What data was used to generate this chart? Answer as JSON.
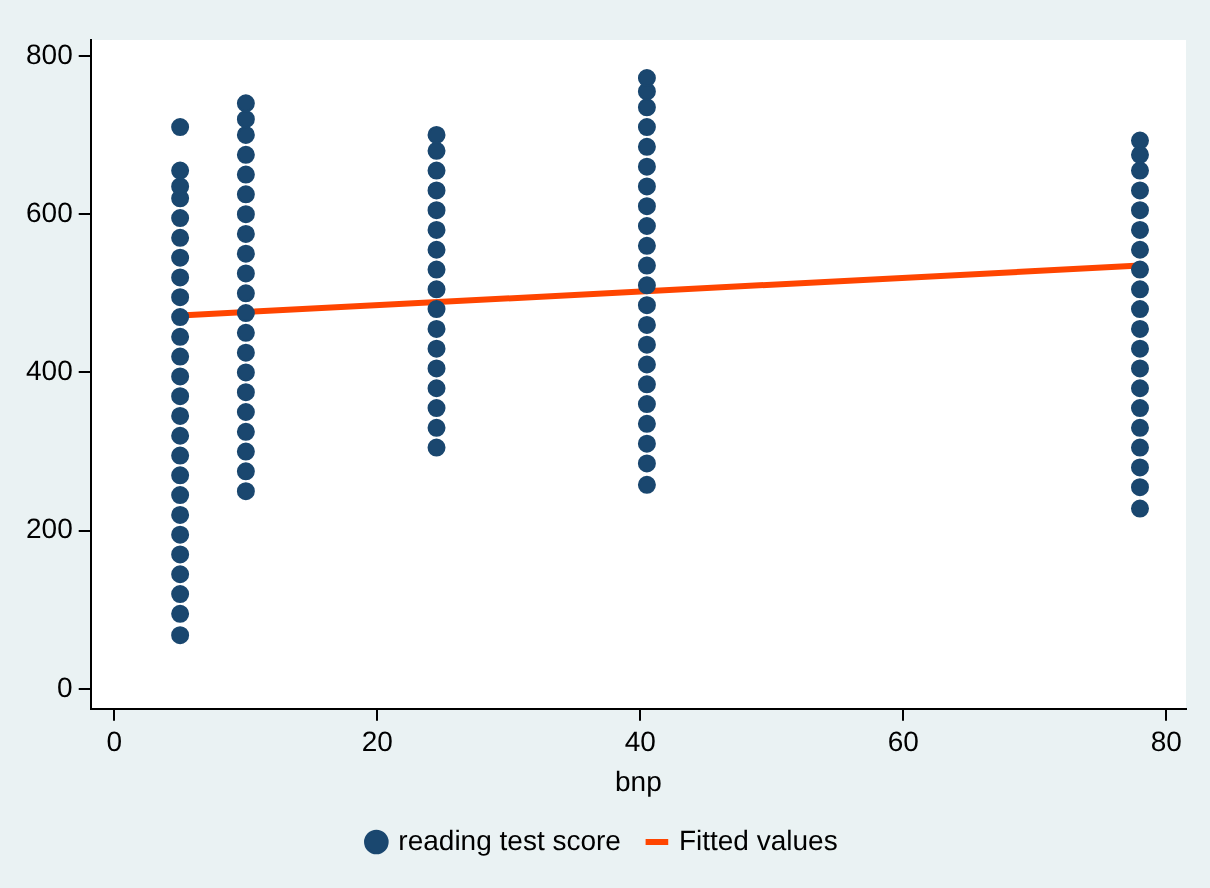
{
  "chart_data": {
    "type": "scatter",
    "xlabel": "bnp",
    "xlim": [
      -1.8,
      81.5
    ],
    "xticks": [
      0,
      20,
      40,
      60,
      80
    ],
    "ylim": [
      -25,
      820
    ],
    "yticks": [
      0,
      200,
      400,
      600,
      800
    ],
    "grid": false,
    "legend": "bottom",
    "series": [
      {
        "name": "reading test score",
        "color": "#1a476f",
        "marker": "circle",
        "x": [
          5,
          5,
          5,
          5,
          5,
          5,
          5,
          5,
          5,
          5,
          5,
          5,
          5,
          5,
          5,
          5,
          5,
          5,
          5,
          5,
          5,
          5,
          5,
          5,
          5,
          5,
          10,
          10,
          10,
          10,
          10,
          10,
          10,
          10,
          10,
          10,
          10,
          10,
          10,
          10,
          10,
          10,
          10,
          10,
          10,
          10,
          10,
          24.5,
          24.5,
          24.5,
          24.5,
          24.5,
          24.5,
          24.5,
          24.5,
          24.5,
          24.5,
          24.5,
          24.5,
          24.5,
          24.5,
          24.5,
          24.5,
          24.5,
          40.5,
          40.5,
          40.5,
          40.5,
          40.5,
          40.5,
          40.5,
          40.5,
          40.5,
          40.5,
          40.5,
          40.5,
          40.5,
          40.5,
          40.5,
          40.5,
          40.5,
          40.5,
          40.5,
          40.5,
          40.5,
          40.5,
          78,
          78,
          78,
          78,
          78,
          78,
          78,
          78,
          78,
          78,
          78,
          78,
          78,
          78,
          78,
          78,
          78,
          78,
          78,
          78
        ],
        "values": [
          68,
          95,
          120,
          145,
          170,
          195,
          220,
          245,
          270,
          295,
          320,
          345,
          370,
          395,
          420,
          445,
          470,
          495,
          520,
          545,
          570,
          595,
          620,
          635,
          655,
          710,
          250,
          275,
          300,
          325,
          350,
          375,
          400,
          425,
          450,
          475,
          500,
          525,
          550,
          575,
          600,
          625,
          650,
          675,
          700,
          720,
          740,
          305,
          330,
          355,
          380,
          405,
          430,
          455,
          480,
          505,
          530,
          555,
          580,
          605,
          630,
          655,
          680,
          700,
          258,
          285,
          310,
          335,
          360,
          385,
          410,
          435,
          460,
          485,
          510,
          535,
          560,
          585,
          610,
          635,
          660,
          685,
          710,
          735,
          755,
          772,
          228,
          255,
          280,
          305,
          330,
          355,
          380,
          405,
          430,
          455,
          480,
          505,
          530,
          555,
          580,
          605,
          630,
          655,
          675,
          693
        ]
      },
      {
        "name": "Fitted values",
        "type": "line",
        "color": "#ff4500",
        "marker": "none",
        "x": [
          5,
          78
        ],
        "values": [
          472,
          535
        ]
      }
    ]
  }
}
